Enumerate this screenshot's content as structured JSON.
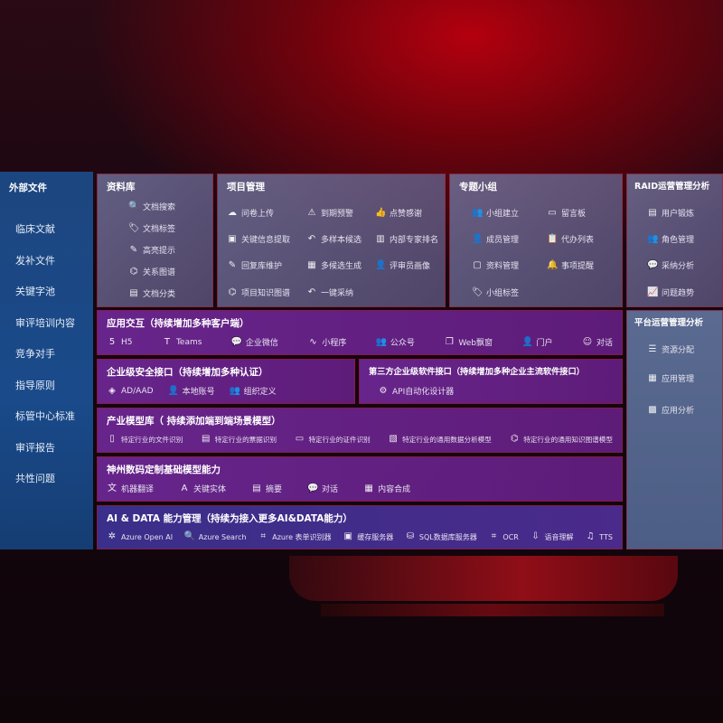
{
  "sidebar": {
    "title": "外部文件",
    "items": [
      "临床文献",
      "发补文件",
      "关键字池",
      "审评培训内容",
      "竞争对手",
      "指导原则",
      "标管中心标准",
      "审评报告",
      "共性问题"
    ]
  },
  "library": {
    "title": "资料库",
    "items": [
      {
        "icon": "doc-search-icon",
        "g": "🔍",
        "label": "文档搜索"
      },
      {
        "icon": "tag-icon",
        "g": "🏷",
        "label": "文档标签"
      },
      {
        "icon": "pen-icon",
        "g": "✎",
        "label": "高亮提示"
      },
      {
        "icon": "graph-icon",
        "g": "⌬",
        "label": "关系图谱"
      },
      {
        "icon": "doc-classify-icon",
        "g": "▤",
        "label": "文档分类"
      }
    ]
  },
  "project": {
    "title": "项目管理",
    "items": [
      {
        "icon": "cloud-upload-icon",
        "g": "☁",
        "label": "问卷上传"
      },
      {
        "icon": "alarm-icon",
        "g": "⚠",
        "label": "到期预警"
      },
      {
        "icon": "thumbs-up-icon",
        "g": "👍",
        "label": "点赞感谢"
      },
      {
        "icon": "info-extract-icon",
        "g": "▣",
        "label": "关键信息提取"
      },
      {
        "icon": "reply-icon",
        "g": "↶",
        "label": "多样本候选"
      },
      {
        "icon": "ranking-icon",
        "g": "▥",
        "label": "内部专家排名"
      },
      {
        "icon": "edit-icon",
        "g": "✎",
        "label": "回复库维护"
      },
      {
        "icon": "puzzle-icon",
        "g": "▦",
        "label": "多候选生成"
      },
      {
        "icon": "user-icon",
        "g": "👤",
        "label": "评审员画像"
      },
      {
        "icon": "knowledge-graph-icon",
        "g": "⌬",
        "label": "项目知识图谱"
      },
      {
        "icon": "reply-icon",
        "g": "↶",
        "label": "一键采纳"
      }
    ]
  },
  "group": {
    "title": "专题小组",
    "items": [
      {
        "icon": "users-icon",
        "g": "👥",
        "label": "小组建立"
      },
      {
        "icon": "bbs-icon",
        "g": "▭",
        "label": "留言板"
      },
      {
        "icon": "add-member-icon",
        "g": "👤",
        "label": "成员管理"
      },
      {
        "icon": "clipboard-icon",
        "g": "📋",
        "label": "代办列表"
      },
      {
        "icon": "folder-icon",
        "g": "▢",
        "label": "资料管理"
      },
      {
        "icon": "bell-icon",
        "g": "🔔",
        "label": "事项提醒"
      },
      {
        "icon": "tag-icon",
        "g": "🏷",
        "label": "小组标签"
      }
    ]
  },
  "raid": {
    "title": "RAID运营管理分析",
    "items": [
      {
        "icon": "id-card-icon",
        "g": "▤",
        "label": "用户锻炼"
      },
      {
        "icon": "users-icon",
        "g": "👥",
        "label": "角色管理"
      },
      {
        "icon": "qa-icon",
        "g": "💬",
        "label": "采纳分析"
      },
      {
        "icon": "trend-icon",
        "g": "📈",
        "label": "问题趋势"
      }
    ]
  },
  "platform": {
    "title": "平台运营管理分析",
    "items": [
      {
        "icon": "checklist-icon",
        "g": "☰",
        "label": "资源分配"
      },
      {
        "icon": "apps-icon",
        "g": "▦",
        "label": "应用管理"
      },
      {
        "icon": "analysis-icon",
        "g": "▩",
        "label": "应用分析"
      }
    ]
  },
  "interaction": {
    "title": "应用交互（持续增加多种客户端）",
    "items": [
      {
        "icon": "html5-icon",
        "g": "5",
        "label": "H5"
      },
      {
        "icon": "teams-icon",
        "g": "T",
        "label": "Teams"
      },
      {
        "icon": "wecom-icon",
        "g": "💬",
        "label": "企业微信"
      },
      {
        "icon": "miniprogram-icon",
        "g": "∿",
        "label": "小程序"
      },
      {
        "icon": "official-account-icon",
        "g": "👥",
        "label": "公众号"
      },
      {
        "icon": "web-window-icon",
        "g": "❐",
        "label": "Web飘窗"
      },
      {
        "icon": "portal-icon",
        "g": "👤",
        "label": "门户"
      },
      {
        "icon": "chat-icon",
        "g": "☺",
        "label": "对话"
      }
    ]
  },
  "security": {
    "title": "企业级安全接口（持续增加多种认证）",
    "items": [
      {
        "icon": "aad-icon",
        "g": "◈",
        "label": "AD/AAD"
      },
      {
        "icon": "local-account-icon",
        "g": "👤",
        "label": "本地账号"
      },
      {
        "icon": "org-icon",
        "g": "👥",
        "label": "组织定义"
      }
    ]
  },
  "thirdparty": {
    "title": "第三方企业级软件接口（持续增加多种企业主流软件接口）",
    "items": [
      {
        "icon": "api-gear-icon",
        "g": "⚙",
        "label": "API自动化设计器"
      }
    ]
  },
  "industry": {
    "title": "产业模型库（ 持续添加端到端场景模型）",
    "items": [
      {
        "icon": "file-icon",
        "g": "▯",
        "label": "特定行业的文件识别"
      },
      {
        "icon": "receipt-icon",
        "g": "▤",
        "label": "特定行业的票据识别"
      },
      {
        "icon": "id-card-icon",
        "g": "▭",
        "label": "特定行业的证件识别"
      },
      {
        "icon": "chart-icon",
        "g": "▧",
        "label": "特定行业的通用数据分析模型"
      },
      {
        "icon": "knowledge-graph-icon",
        "g": "⌬",
        "label": "特定行业的通用知识图谱模型"
      }
    ]
  },
  "basemodel": {
    "title": "神州数码定制基础模型能力",
    "items": [
      {
        "icon": "translate-icon",
        "g": "文",
        "label": "机器翻译"
      },
      {
        "icon": "entity-icon",
        "g": "A",
        "label": "关键实体"
      },
      {
        "icon": "summary-icon",
        "g": "▤",
        "label": "摘要"
      },
      {
        "icon": "chat-icon",
        "g": "💬",
        "label": "对话"
      },
      {
        "icon": "compose-icon",
        "g": "▦",
        "label": "内容合成"
      }
    ]
  },
  "aidata": {
    "title": "AI & DATA 能力管理（持续为接入更多AI&DATA能力）",
    "items": [
      {
        "icon": "openai-icon",
        "g": "✲",
        "label": "Azure Open AI"
      },
      {
        "icon": "search-icon",
        "g": "🔍",
        "label": "Azure Search"
      },
      {
        "icon": "form-recognizer-icon",
        "g": "⌗",
        "label": "Azure 表单识别器"
      },
      {
        "icon": "cache-icon",
        "g": "▣",
        "label": "缓存服务器"
      },
      {
        "icon": "sql-icon",
        "g": "⛁",
        "label": "SQL数据库服务器"
      },
      {
        "icon": "ocr-icon",
        "g": "⌗",
        "label": "OCR"
      },
      {
        "icon": "speech-icon",
        "g": "⇩",
        "label": "语音理解"
      },
      {
        "icon": "tts-icon",
        "g": "♫",
        "label": "TTS"
      }
    ]
  }
}
